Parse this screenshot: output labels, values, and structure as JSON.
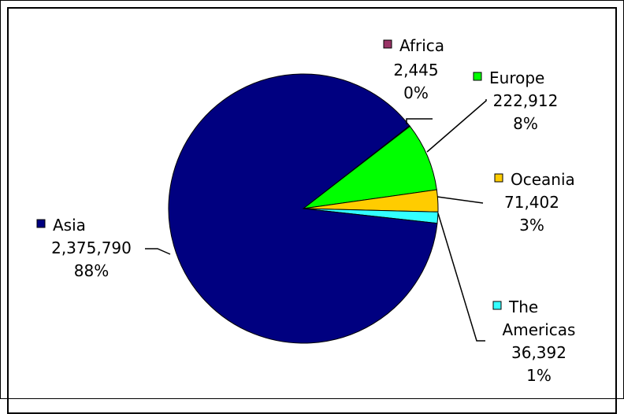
{
  "chart_data": {
    "type": "pie",
    "title": "",
    "slices": [
      {
        "name": "Africa",
        "value": 2445,
        "value_label": "2,445",
        "pct_label": "0%",
        "color": "#993366"
      },
      {
        "name": "Europe",
        "value": 222912,
        "value_label": "222,912",
        "pct_label": "8%",
        "color": "#00ff00"
      },
      {
        "name": "Oceania",
        "value": 71402,
        "value_label": "71,402",
        "pct_label": "3%",
        "color": "#ffcc00"
      },
      {
        "name": "The Americas",
        "value": 36392,
        "value_label": "36,392",
        "pct_label": "1%",
        "color": "#33ffff"
      },
      {
        "name": "Asia",
        "value": 2375790,
        "value_label": "2,375,790",
        "pct_label": "88%",
        "color": "#000080"
      }
    ]
  }
}
